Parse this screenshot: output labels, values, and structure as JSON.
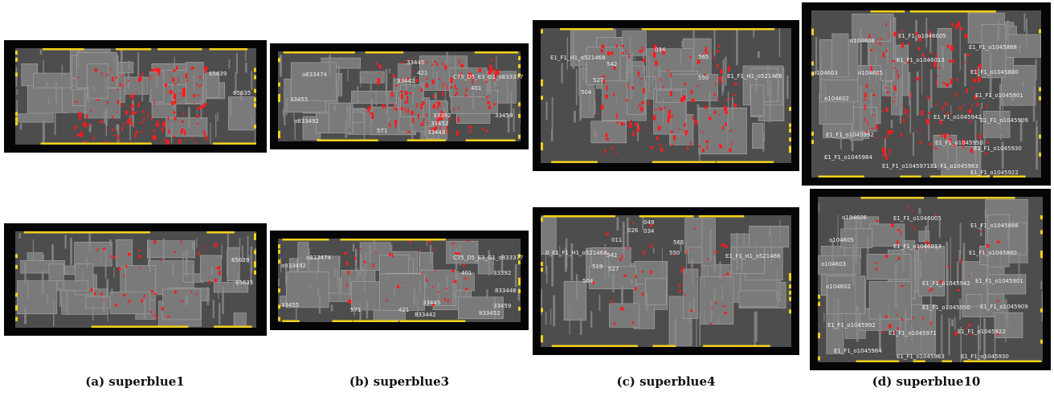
{
  "colors": {
    "background": "#050505",
    "die": "#4d4d4d",
    "macro": "#7a7a7a",
    "macro_edge": "#a9a9a9",
    "congestion": "#ff1a1a",
    "io_pins": "#f2d21b"
  },
  "captions": [
    "(a) superblue1",
    "(b) superblue3",
    "(c) superblue4",
    "(d) superblue10"
  ],
  "panels": {
    "sb1_top": {
      "labels": [
        "65639",
        "65635"
      ]
    },
    "sb1_bot": {
      "labels": [
        "65639",
        "65635"
      ]
    },
    "sb3_top": {
      "labels": [
        "33445",
        "421",
        "o833474",
        "33442",
        "C75_D5_E3_G1_o833377",
        "401",
        "33455",
        "o833492",
        "33392",
        "33459",
        "33452",
        "571",
        "33448"
      ]
    },
    "sb3_bot": {
      "labels": [
        "o833474",
        "C75_D5_E3_G1_o833377",
        "o833492",
        "401",
        "33392",
        "833448",
        "33455",
        "571",
        "421",
        "33445",
        "33459",
        "833442",
        "833452"
      ]
    },
    "sb4_top": {
      "labels": [
        "E1_F1_H1_o521468",
        "034",
        "542",
        "565",
        "527",
        "550",
        "E1_F1_H1_o521466",
        "504"
      ]
    },
    "sb4_bot": {
      "labels": [
        "049",
        "026",
        "034",
        "011",
        "565",
        "0_E1_F1_H1_o521468",
        "542",
        "550",
        "E1_F1_H1_o521466",
        "519",
        "527",
        "504"
      ]
    },
    "sb10_top": {
      "labels": [
        "E1_F1_o1046005",
        "o104606",
        "E1_F1_o1045888",
        "E1_F1_o1046013",
        "o104603",
        "o104605",
        "E1_F1_o1045880",
        "o104602",
        "E1_F1_o1045901",
        "E1_F1_o1045942",
        "E1_F1_o1045909",
        "E1_F1_o1045992",
        "E1_F1_o1045950",
        "E1_F1_o1045930",
        "E1_F1_o1045984",
        "E1_F1_o1045971",
        "E1_F1_o1045963",
        "E1_F1_o1045922"
      ]
    },
    "sb10_bot": {
      "labels": [
        "o104606",
        "E1_F1_o1046005",
        "E1_F1_o1045888",
        "o104605",
        "E1_F1_o1046013",
        "o104603",
        "E1_F1_o1045880",
        "o104602",
        "E1_F1_o1045942",
        "E1_F1_o1045901",
        "E1_F1_o1045950",
        "E1_F1_o1045909",
        "E1_F1_o1045992",
        "E1_F1_o1045971",
        "E1_F1_o1045922",
        "E1_F1_o1045984",
        "E1_F1_o1045963",
        "E1_F1_o1045930"
      ]
    }
  }
}
